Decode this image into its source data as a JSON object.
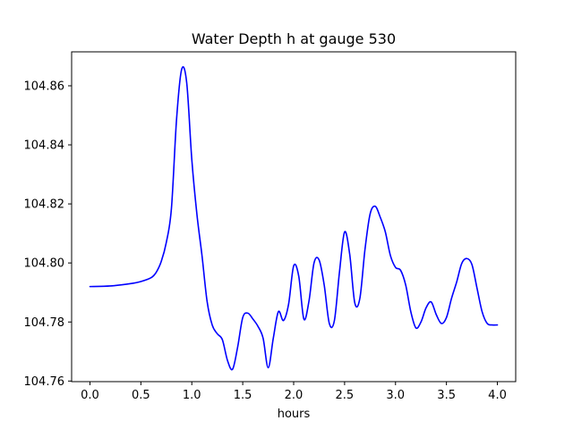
{
  "chart_data": {
    "type": "line",
    "title": "Water Depth h at gauge 530",
    "xlabel": "hours",
    "ylabel": "",
    "xlim": [
      -0.18,
      4.18
    ],
    "ylim": [
      104.7598,
      104.8715
    ],
    "grid": false,
    "xticks": [
      0.0,
      0.5,
      1.0,
      1.5,
      2.0,
      2.5,
      3.0,
      3.5,
      4.0
    ],
    "xtick_labels": [
      "0.0",
      "0.5",
      "1.0",
      "1.5",
      "2.0",
      "2.5",
      "3.0",
      "3.5",
      "4.0"
    ],
    "yticks": [
      104.76,
      104.78,
      104.8,
      104.82,
      104.84,
      104.86
    ],
    "ytick_labels": [
      "104.76",
      "104.78",
      "104.80",
      "104.82",
      "104.84",
      "104.86"
    ],
    "series": [
      {
        "color": "#0000ff",
        "x": [
          0.0,
          0.2,
          0.4,
          0.5,
          0.6,
          0.65,
          0.7,
          0.75,
          0.8,
          0.85,
          0.9,
          0.95,
          1.0,
          1.05,
          1.1,
          1.15,
          1.2,
          1.25,
          1.3,
          1.35,
          1.4,
          1.45,
          1.5,
          1.55,
          1.6,
          1.65,
          1.7,
          1.75,
          1.8,
          1.85,
          1.9,
          1.95,
          2.0,
          2.05,
          2.1,
          2.15,
          2.2,
          2.25,
          2.3,
          2.35,
          2.4,
          2.45,
          2.5,
          2.55,
          2.6,
          2.65,
          2.7,
          2.75,
          2.8,
          2.85,
          2.9,
          2.95,
          3.0,
          3.05,
          3.1,
          3.15,
          3.2,
          3.25,
          3.3,
          3.35,
          3.4,
          3.45,
          3.5,
          3.55,
          3.6,
          3.65,
          3.7,
          3.75,
          3.8,
          3.85,
          3.9,
          3.95,
          4.0
        ],
        "y": [
          104.792,
          104.7922,
          104.793,
          104.7937,
          104.795,
          104.7968,
          104.8005,
          104.807,
          104.8185,
          104.8485,
          104.8655,
          104.861,
          104.835,
          104.8165,
          104.8025,
          104.787,
          104.779,
          104.776,
          104.774,
          104.767,
          104.764,
          104.7715,
          104.7815,
          104.783,
          104.781,
          104.7785,
          104.7745,
          104.7645,
          104.7745,
          104.7835,
          104.7805,
          104.786,
          104.799,
          104.7955,
          104.781,
          104.787,
          104.8,
          104.801,
          104.7925,
          104.7795,
          104.7805,
          104.797,
          104.8105,
          104.803,
          104.7865,
          104.788,
          104.8045,
          104.8165,
          104.8192,
          104.8155,
          104.8105,
          104.8025,
          104.7985,
          104.7975,
          104.7925,
          104.7835,
          104.778,
          104.78,
          104.7848,
          104.7868,
          104.7825,
          104.7795,
          104.7815,
          104.788,
          104.7935,
          104.7998,
          104.8015,
          104.7995,
          104.7915,
          104.7835,
          104.7795,
          104.779,
          104.779
        ]
      }
    ]
  }
}
